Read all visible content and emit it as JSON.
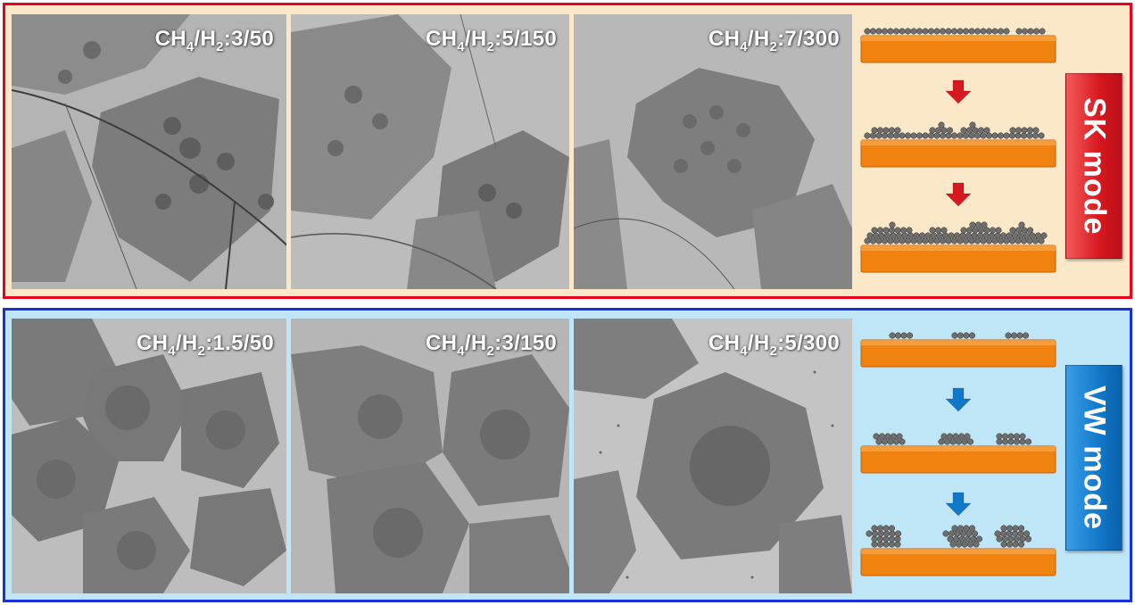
{
  "sk_row": {
    "mode_label": "SK mode",
    "panels": [
      {
        "formula": "CH",
        "sub1": "4",
        "mid": "/H",
        "sub2": "2",
        "ratio": ":3/50"
      },
      {
        "formula": "CH",
        "sub1": "4",
        "mid": "/H",
        "sub2": "2",
        "ratio": ":5/150"
      },
      {
        "formula": "CH",
        "sub1": "4",
        "mid": "/H",
        "sub2": "2",
        "ratio": ":7/300"
      }
    ]
  },
  "vw_row": {
    "mode_label": "VW mode",
    "panels": [
      {
        "formula": "CH",
        "sub1": "4",
        "mid": "/H",
        "sub2": "2",
        "ratio": ":1.5/50"
      },
      {
        "formula": "CH",
        "sub1": "4",
        "mid": "/H",
        "sub2": "2",
        "ratio": ":3/150"
      },
      {
        "formula": "CH",
        "sub1": "4",
        "mid": "/H",
        "sub2": "2",
        "ratio": ":5/300"
      }
    ]
  },
  "colors": {
    "sk_border": "#e8001c",
    "sk_background": "#fbe8c8",
    "vw_border": "#1a2fd6",
    "vw_background": "#bfe6f6",
    "substrate": "#f0820f",
    "atom": "#6e6e6e",
    "sk_arrow": "#d7181f",
    "vw_arrow": "#1178c9"
  }
}
